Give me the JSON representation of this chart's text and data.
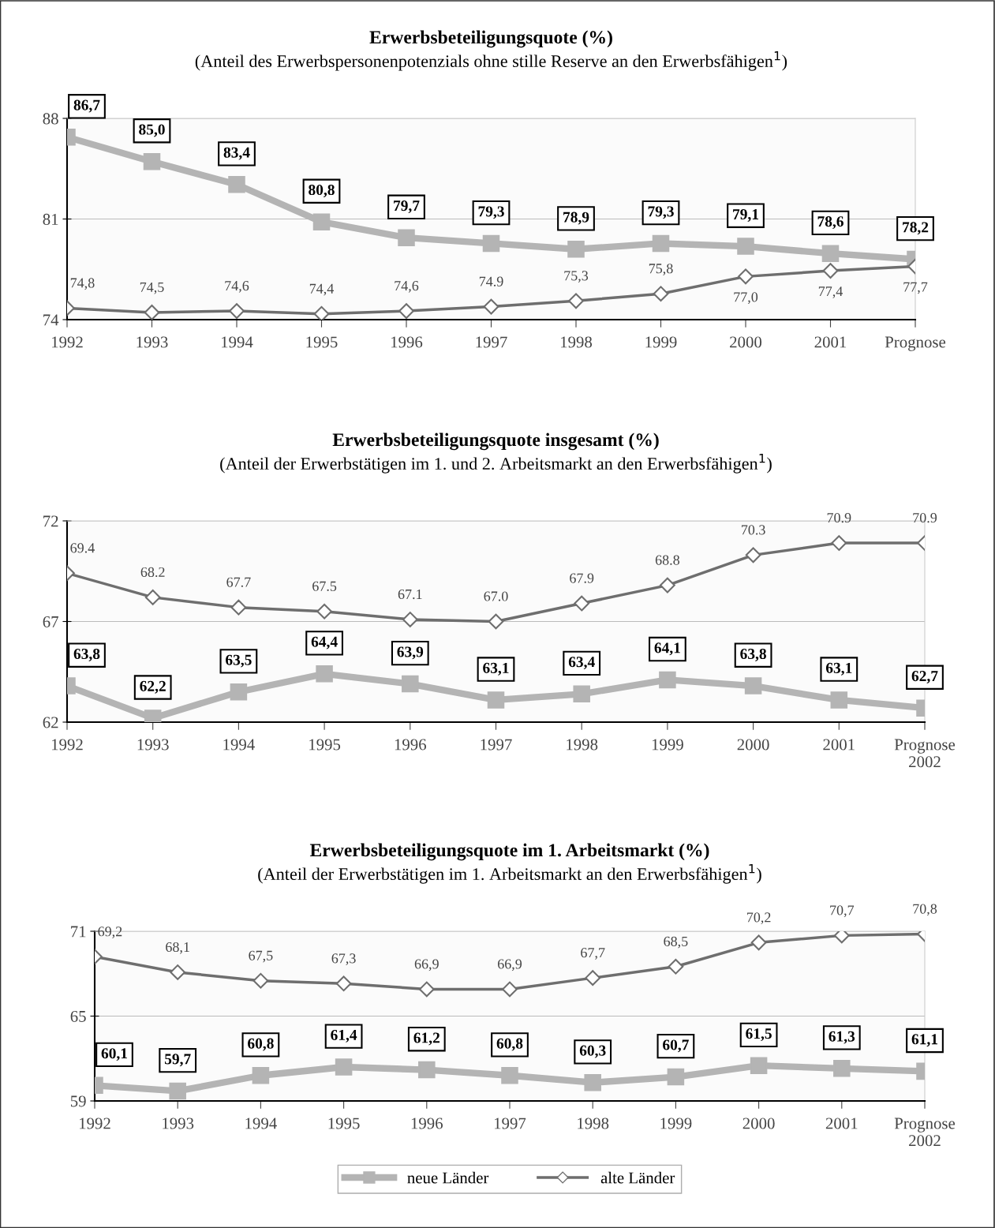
{
  "chart_data": [
    {
      "type": "line",
      "title": "Erwerbsbeteiligungsquote (%)",
      "subtitle": "(Anteil des Erwerbspersonenpotenzials ohne stille Reserve an den Erwerbsfähigen$^{1}$)",
      "categories": [
        "1992",
        "1993",
        "1994",
        "1995",
        "1996",
        "1997",
        "1998",
        "1999",
        "2000",
        "2001",
        "Prognose"
      ],
      "series": [
        {
          "color": "#b4b4b4",
          "marker": "square",
          "values": [
            86.7,
            85.0,
            83.4,
            80.8,
            79.7,
            79.3,
            78.9,
            79.3,
            79.1,
            78.6,
            78.2
          ],
          "value_labels": [
            "86,7",
            "85,0",
            "83,4",
            "80,8",
            "79,7",
            "79,3",
            "78,9",
            "79,3",
            "79,1",
            "78,6",
            "78,2"
          ]
        },
        {
          "color": "#6e6e6e",
          "marker": "diamond",
          "values": [
            74.8,
            74.5,
            74.6,
            74.4,
            74.6,
            74.9,
            75.3,
            75.8,
            77.0,
            77.4,
            77.7
          ],
          "value_labels": [
            "74,8",
            "74,5",
            "74,6",
            "74,4",
            "74,6",
            "74.9",
            "75,3",
            "75,8",
            "77,0",
            "77,4",
            "77,7"
          ]
        }
      ],
      "ylim": [
        74,
        88
      ],
      "yticks": [
        74,
        81,
        88
      ],
      "grid": "y",
      "legend": false
    },
    {
      "type": "line",
      "title": "Erwerbsbeteiligungsquote insgesamt (%)",
      "subtitle": "(Anteil der Erwerbstätigen im 1. und 2. Arbeitsmarkt an den Erwerbsfähigen$^{1}$)",
      "categories": [
        "1992",
        "1993",
        "1994",
        "1995",
        "1996",
        "1997",
        "1998",
        "1999",
        "2000",
        "2001",
        "Prognose\n2002"
      ],
      "series": [
        {
          "color": "#b4b4b4",
          "marker": "square",
          "values": [
            63.8,
            62.2,
            63.5,
            64.4,
            63.9,
            63.1,
            63.4,
            64.1,
            63.8,
            63.1,
            62.7
          ],
          "value_labels": [
            "63,8",
            "62,2",
            "63,5",
            "64,4",
            "63,9",
            "63,1",
            "63,4",
            "64,1",
            "63,8",
            "63,1",
            "62,7"
          ]
        },
        {
          "color": "#6e6e6e",
          "marker": "diamond",
          "values": [
            69.4,
            68.2,
            67.7,
            67.5,
            67.1,
            67.0,
            67.9,
            68.8,
            70.3,
            70.9,
            70.9
          ],
          "value_labels": [
            "69.4",
            "68.2",
            "67.7",
            "67.5",
            "67.1",
            "67.0",
            "67.9",
            "68.8",
            "70.3",
            "70.9",
            "70.9"
          ]
        }
      ],
      "ylim": [
        62,
        72
      ],
      "yticks": [
        62,
        67,
        72
      ],
      "grid": "y",
      "legend": false
    },
    {
      "type": "line",
      "title": "Erwerbsbeteiligungsquote im 1. Arbeitsmarkt (%)",
      "subtitle": "(Anteil der Erwerbstätigen im 1. Arbeitsmarkt an den Erwerbsfähigen$^{1}$)",
      "categories": [
        "1992",
        "1993",
        "1994",
        "1995",
        "1996",
        "1997",
        "1998",
        "1999",
        "2000",
        "2001",
        "Prognose\n2002"
      ],
      "series": [
        {
          "name": "neue Länder",
          "color": "#b4b4b4",
          "marker": "square",
          "values": [
            60.1,
            59.7,
            60.8,
            61.4,
            61.2,
            60.8,
            60.3,
            60.7,
            61.5,
            61.3,
            61.1
          ],
          "value_labels": [
            "60,1",
            "59,7",
            "60,8",
            "61,4",
            "61,2",
            "60,8",
            "60,3",
            "60,7",
            "61,5",
            "61,3",
            "61,1"
          ]
        },
        {
          "name": "alte Länder",
          "color": "#6e6e6e",
          "marker": "diamond",
          "values": [
            69.2,
            68.1,
            67.5,
            67.3,
            66.9,
            66.9,
            67.7,
            68.5,
            70.2,
            70.7,
            70.8
          ],
          "value_labels": [
            "69,2",
            "68,1",
            "67,5",
            "67,3",
            "66,9",
            "66,9",
            "67,7",
            "68,5",
            "70,2",
            "70,7",
            "70,8"
          ]
        }
      ],
      "ylim": [
        59,
        71
      ],
      "yticks": [
        59,
        65,
        71
      ],
      "grid": "y",
      "legend": "bottom"
    }
  ]
}
